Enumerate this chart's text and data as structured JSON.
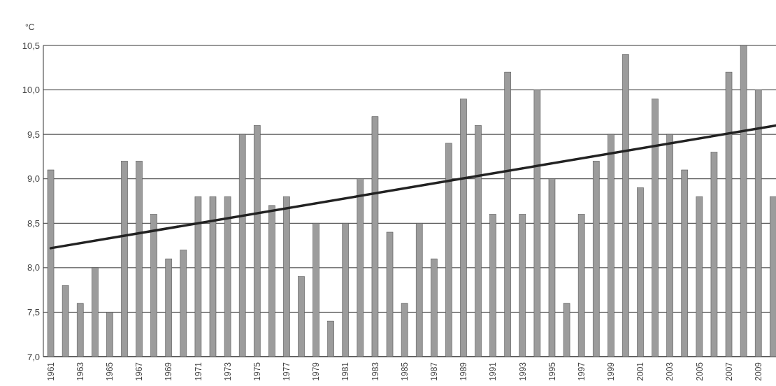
{
  "chart_data": {
    "type": "bar",
    "ylabel": "°C",
    "x": [
      1961,
      1962,
      1963,
      1964,
      1965,
      1966,
      1967,
      1968,
      1969,
      1970,
      1971,
      1972,
      1973,
      1974,
      1975,
      1976,
      1977,
      1978,
      1979,
      1980,
      1981,
      1982,
      1983,
      1984,
      1985,
      1986,
      1987,
      1988,
      1989,
      1990,
      1991,
      1992,
      1993,
      1994,
      1995,
      1996,
      1997,
      1998,
      1999,
      2000,
      2001,
      2002,
      2003,
      2004,
      2005,
      2006,
      2007,
      2008,
      2009,
      2010
    ],
    "series": [
      {
        "color": "#9c9c9c",
        "values": [
          9.1,
          7.8,
          7.6,
          8.0,
          7.5,
          9.2,
          9.2,
          8.6,
          8.1,
          8.2,
          8.8,
          8.8,
          8.8,
          9.5,
          9.6,
          8.7,
          8.8,
          7.9,
          8.5,
          7.4,
          8.5,
          9.0,
          9.7,
          8.4,
          7.6,
          8.5,
          8.1,
          9.4,
          9.9,
          9.6,
          8.6,
          10.2,
          8.6,
          10.0,
          9.0,
          7.6,
          8.6,
          9.2,
          9.5,
          10.4,
          8.9,
          9.9,
          9.5,
          9.1,
          8.8,
          9.3,
          10.2,
          10.5,
          10.0,
          8.8
        ]
      },
      {
        "type": "line",
        "color": "#222222",
        "x": [
          1961,
          2010.2
        ],
        "values": [
          8.22,
          9.6
        ]
      }
    ],
    "xlim": [
      1960.5,
      2010.2
    ],
    "xticks": [
      1961,
      1963,
      1965,
      1967,
      1969,
      1971,
      1973,
      1975,
      1977,
      1979,
      1981,
      1983,
      1985,
      1987,
      1989,
      1991,
      1993,
      1995,
      1997,
      1999,
      2001,
      2003,
      2005,
      2007,
      2009
    ],
    "ylim": [
      7,
      10.5
    ],
    "yticks": [
      {
        "value": 7,
        "label": "7,0"
      },
      {
        "value": 7.5,
        "label": "7,5"
      },
      {
        "value": 8,
        "label": "8,0"
      },
      {
        "value": 8.5,
        "label": "8,5"
      },
      {
        "value": 9,
        "label": "9,0"
      },
      {
        "value": 9.5,
        "label": "9,5"
      },
      {
        "value": 10,
        "label": "10,0"
      },
      {
        "value": 10.5,
        "label": "10,5"
      }
    ],
    "grid": "y"
  }
}
